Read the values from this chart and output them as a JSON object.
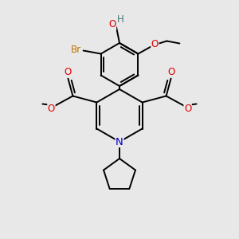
{
  "bg_color": "#e8e8e8",
  "bond_color": "#000000",
  "atom_colors": {
    "N": "#0000cc",
    "O": "#dd0000",
    "Br": "#bb7700",
    "H": "#447777",
    "C": "#000000"
  },
  "font_size": 8.5,
  "fig_size": [
    3.0,
    3.0
  ],
  "dpi": 100
}
